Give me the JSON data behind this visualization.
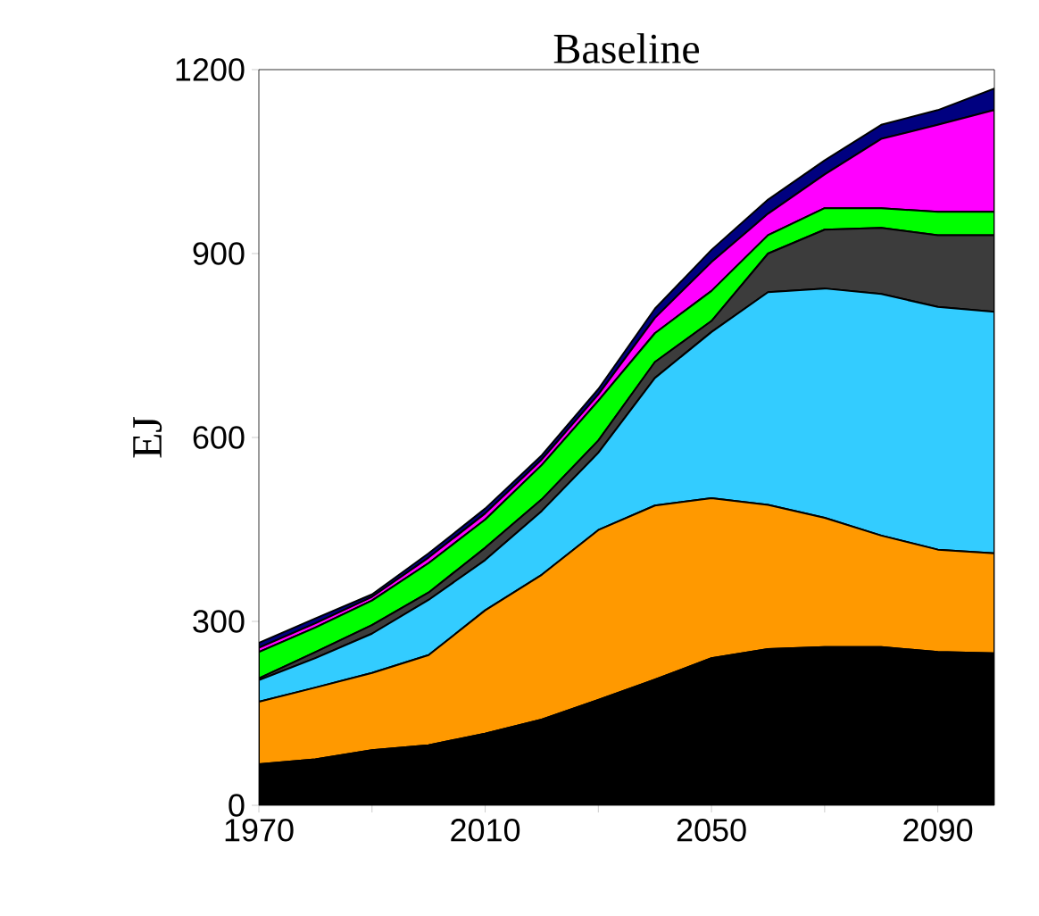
{
  "chart_data": {
    "type": "area",
    "title": "Baseline",
    "ylabel": "EJ",
    "stacked": true,
    "x": [
      1970,
      1980,
      1990,
      2000,
      2010,
      2020,
      2030,
      2040,
      2050,
      2060,
      2070,
      2080,
      2090,
      2100
    ],
    "series": [
      {
        "color": "#000000",
        "values": [
          67,
          75,
          90,
          98,
          117,
          140,
          172,
          205,
          240,
          255,
          258,
          258,
          250,
          248
        ]
      },
      {
        "color": "#ff9900",
        "values": [
          102,
          117,
          126,
          147,
          201,
          236,
          277,
          284,
          261,
          235,
          211,
          182,
          167,
          163
        ]
      },
      {
        "color": "#33ccff",
        "values": [
          35,
          48,
          64,
          90,
          82,
          104,
          126,
          208,
          271,
          347,
          374,
          394,
          396,
          394
        ]
      },
      {
        "color": "#3c3c3c",
        "values": [
          3,
          10,
          14,
          12,
          20,
          19,
          20,
          26,
          18,
          63,
          96,
          108,
          117,
          125
        ]
      },
      {
        "color": "#00ff00",
        "values": [
          43,
          40,
          40,
          48,
          46,
          56,
          65,
          47,
          49,
          30,
          35,
          32,
          38,
          38
        ]
      },
      {
        "color": "#ff00ff",
        "values": [
          7,
          7,
          6,
          9,
          10,
          9,
          10,
          25,
          47,
          35,
          55,
          113,
          142,
          166
        ]
      },
      {
        "color": "#000080",
        "values": [
          8,
          8,
          4,
          7,
          8,
          7,
          9,
          15,
          20,
          23,
          23,
          23,
          24,
          35
        ]
      }
    ],
    "xlim": [
      1970,
      2100
    ],
    "ylim": [
      0,
      1200
    ],
    "xticks": [
      1970,
      {
        "value": 1990,
        "label": null
      },
      2010,
      {
        "value": 2030,
        "label": null
      },
      2050,
      {
        "value": 2070,
        "label": null
      },
      2090
    ],
    "yticks": [
      0,
      300,
      600,
      900,
      1200
    ]
  }
}
